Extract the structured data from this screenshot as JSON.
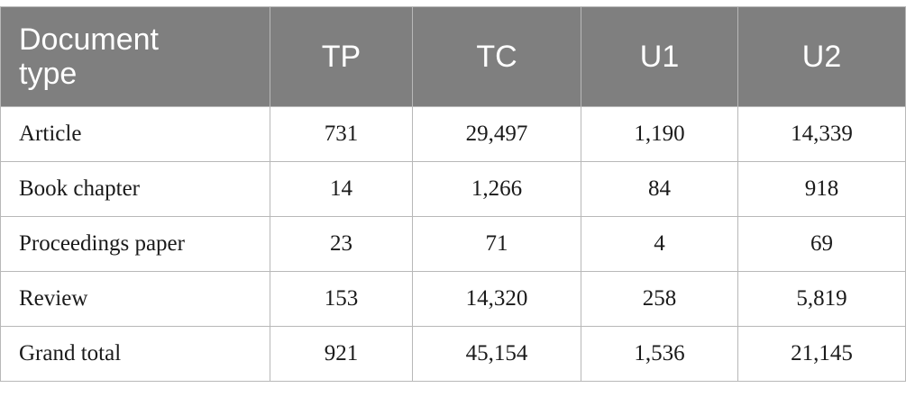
{
  "table": {
    "headers": [
      "Document\ntype",
      "TP",
      "TC",
      "U1",
      "U2"
    ],
    "header_first_line1": "Document",
    "header_first_line2": "type",
    "rows": [
      {
        "label": "Article",
        "values": [
          "731",
          "29,497",
          "1,190",
          "14,339"
        ]
      },
      {
        "label": "Book chapter",
        "values": [
          "14",
          "1,266",
          "84",
          "918"
        ]
      },
      {
        "label": "Proceedings paper",
        "values": [
          "23",
          "71",
          "4",
          "69"
        ]
      },
      {
        "label": "Review",
        "values": [
          "153",
          "14,320",
          "258",
          "5,819"
        ]
      },
      {
        "label": "Grand total",
        "values": [
          "921",
          "45,154",
          "1,536",
          "21,145"
        ]
      }
    ]
  },
  "colors": {
    "header_bg": "#7f7f7f",
    "header_text": "#ffffff",
    "border": "#b8b8b8"
  }
}
